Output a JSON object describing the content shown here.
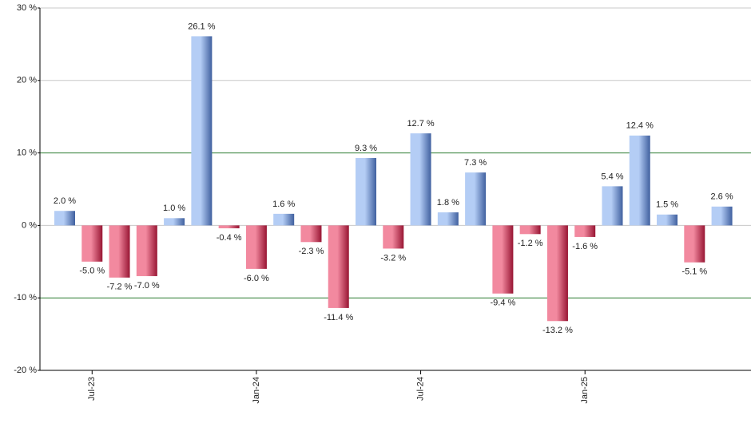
{
  "chart_data": {
    "type": "bar",
    "categories": [
      null,
      "Jul-23",
      null,
      null,
      null,
      null,
      null,
      "Jan-24",
      null,
      null,
      null,
      null,
      null,
      "Jul-24",
      null,
      null,
      null,
      null,
      null,
      "Jan-25",
      null,
      null,
      null,
      null,
      null
    ],
    "values": [
      2.0,
      -5.0,
      -7.2,
      -7.0,
      1.0,
      26.1,
      -0.4,
      -6.0,
      1.6,
      -2.3,
      -11.4,
      9.3,
      -3.2,
      12.7,
      1.8,
      7.3,
      -9.4,
      -1.2,
      -13.2,
      -1.6,
      5.4,
      12.4,
      1.5,
      -5.1,
      2.6
    ],
    "value_labels": [
      "2.0 %",
      "-5.0 %",
      "-7.2 %",
      "-7.0 %",
      "1.0 %",
      "26.1 %",
      "-0.4 %",
      "-6.0 %",
      "1.6 %",
      "-2.3 %",
      "-11.4 %",
      "9.3 %",
      "-3.2 %",
      "12.7 %",
      "1.8 %",
      "7.3 %",
      "-9.4 %",
      "-1.2 %",
      "-13.2 %",
      "-1.6 %",
      "5.4 %",
      "12.4 %",
      "1.5 %",
      "-5.1 %",
      "2.6 %"
    ],
    "ylim": [
      -20,
      30
    ],
    "yticks": [
      {
        "value": -20,
        "label": "-20 %"
      },
      {
        "value": -10,
        "label": "-10 %"
      },
      {
        "value": 0,
        "label": "0 %"
      },
      {
        "value": 10,
        "label": "10 %"
      },
      {
        "value": 20,
        "label": "20 %"
      },
      {
        "value": 30,
        "label": "30 %"
      }
    ],
    "grid": true,
    "grid_color": "#c8c8c8",
    "reference_lines": {
      "values": [
        -10,
        10
      ],
      "color": "#2e7d32"
    },
    "colors": {
      "positive": [
        "#b4cdf5",
        "#40609f"
      ],
      "negative": [
        "#f2899f",
        "#981533"
      ]
    }
  }
}
